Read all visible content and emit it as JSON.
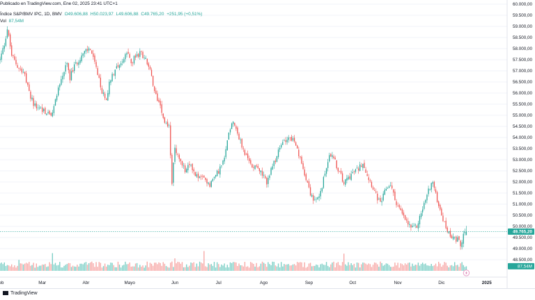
{
  "header": {
    "published": "Publicado en TradingView.com, Ene 02, 2025 23:41 UTC+1",
    "instrument": "Índice S&P/BMV IPC, 1D, BMV",
    "open": "O49.606,88",
    "high": "H50.023,97",
    "low": "L49.606,88",
    "close": "C49.765,20",
    "change": "+251,95 (+0,51%)",
    "vol_label": "Vol",
    "vol_value": "87,54M"
  },
  "badges": {
    "last_price": "49.765,20",
    "last_volume": "87,54M"
  },
  "footer": {
    "brand": "TradingView"
  },
  "colors": {
    "up": "#26a69a",
    "down": "#ef5350",
    "up_volume": "#7ccfc6",
    "down_volume": "#f7a9a7",
    "price_line": "#26a69a"
  },
  "chart_data": {
    "type": "candlestick",
    "title": "Índice S&P/BMV IPC, 1D, BMV",
    "ylim": [
      48000,
      60000
    ],
    "y_ticks": [
      48500,
      49000,
      49500,
      50000,
      50500,
      51000,
      51500,
      52000,
      52500,
      53000,
      53500,
      54000,
      54500,
      55000,
      55500,
      56000,
      56500,
      57000,
      57500,
      58000,
      58500,
      59000,
      59500,
      60000
    ],
    "y_tick_labels": [
      "48.500,00",
      "49.000,00",
      "49.500,00",
      "50.000,00",
      "50.500,00",
      "51.000,00",
      "51.500,00",
      "52.000,00",
      "52.500,00",
      "53.000,00",
      "53.500,00",
      "54.000,00",
      "54.500,00",
      "55.000,00",
      "55.500,00",
      "56.000,00",
      "56.500,00",
      "57.000,00",
      "57.500,00",
      "58.000,00",
      "58.500,00",
      "59.000,00",
      "59.500,00",
      "60.000,00"
    ],
    "x_axis_labels": [
      {
        "label": "Feb",
        "day": 0
      },
      {
        "label": "Mar",
        "day": 29
      },
      {
        "label": "Abr",
        "day": 59
      },
      {
        "label": "Mayo",
        "day": 89
      },
      {
        "label": "Jun",
        "day": 120
      },
      {
        "label": "Jul",
        "day": 150
      },
      {
        "label": "Ago",
        "day": 181
      },
      {
        "label": "Sep",
        "day": 212
      },
      {
        "label": "Oct",
        "day": 242
      },
      {
        "label": "Nov",
        "day": 273
      },
      {
        "label": "Dic",
        "day": 303
      },
      {
        "label": "2025",
        "day": 334
      }
    ],
    "x_range_days": [
      0,
      348
    ],
    "path": [
      [
        0,
        57500
      ],
      [
        3,
        58200
      ],
      [
        5,
        58900
      ],
      [
        8,
        57700
      ],
      [
        12,
        57200
      ],
      [
        16,
        57000
      ],
      [
        20,
        56000
      ],
      [
        24,
        55400
      ],
      [
        28,
        55300
      ],
      [
        32,
        55100
      ],
      [
        36,
        55000
      ],
      [
        39,
        56000
      ],
      [
        43,
        56800
      ],
      [
        46,
        57300
      ],
      [
        48,
        56700
      ],
      [
        51,
        57200
      ],
      [
        55,
        57600
      ],
      [
        59,
        57900
      ],
      [
        62,
        58000
      ],
      [
        66,
        57100
      ],
      [
        70,
        56000
      ],
      [
        73,
        55800
      ],
      [
        76,
        56700
      ],
      [
        80,
        57200
      ],
      [
        84,
        57400
      ],
      [
        87,
        57800
      ],
      [
        90,
        57400
      ],
      [
        94,
        57700
      ],
      [
        97,
        57800
      ],
      [
        100,
        57500
      ],
      [
        103,
        57000
      ],
      [
        106,
        56000
      ],
      [
        110,
        55500
      ],
      [
        113,
        54700
      ],
      [
        116,
        54500
      ],
      [
        118,
        52000
      ],
      [
        120,
        53500
      ],
      [
        123,
        53000
      ],
      [
        127,
        52500
      ],
      [
        131,
        52800
      ],
      [
        134,
        52300
      ],
      [
        137,
        52200
      ],
      [
        141,
        52100
      ],
      [
        144,
        51900
      ],
      [
        147,
        52200
      ],
      [
        150,
        52500
      ],
      [
        154,
        53000
      ],
      [
        157,
        54300
      ],
      [
        160,
        54800
      ],
      [
        163,
        54200
      ],
      [
        166,
        53600
      ],
      [
        170,
        53000
      ],
      [
        173,
        52700
      ],
      [
        176,
        52800
      ],
      [
        180,
        52300
      ],
      [
        183,
        52000
      ],
      [
        186,
        52500
      ],
      [
        189,
        53000
      ],
      [
        192,
        53500
      ],
      [
        195,
        53900
      ],
      [
        198,
        54000
      ],
      [
        201,
        53900
      ],
      [
        204,
        53400
      ],
      [
        207,
        52800
      ],
      [
        210,
        52200
      ],
      [
        213,
        51500
      ],
      [
        216,
        51100
      ],
      [
        219,
        51300
      ],
      [
        222,
        52100
      ],
      [
        225,
        53000
      ],
      [
        228,
        53300
      ],
      [
        230,
        52900
      ],
      [
        233,
        52400
      ],
      [
        236,
        52000
      ],
      [
        239,
        52200
      ],
      [
        242,
        52400
      ],
      [
        246,
        52600
      ],
      [
        249,
        52900
      ],
      [
        252,
        52300
      ],
      [
        255,
        51900
      ],
      [
        258,
        51400
      ],
      [
        261,
        51000
      ],
      [
        265,
        51700
      ],
      [
        268,
        51900
      ],
      [
        271,
        51200
      ],
      [
        274,
        50800
      ],
      [
        277,
        50400
      ],
      [
        280,
        50100
      ],
      [
        283,
        49900
      ],
      [
        286,
        50000
      ],
      [
        289,
        50600
      ],
      [
        292,
        51200
      ],
      [
        295,
        51800
      ],
      [
        297,
        52000
      ],
      [
        299,
        51400
      ],
      [
        302,
        50800
      ],
      [
        305,
        50100
      ],
      [
        308,
        49700
      ],
      [
        311,
        49500
      ],
      [
        314,
        49400
      ],
      [
        316,
        49200
      ],
      [
        318,
        49600
      ],
      [
        320,
        49765
      ]
    ],
    "volume_spikes": [
      {
        "day": 13,
        "volume_m": 210,
        "direction": "up"
      },
      {
        "day": 36,
        "volume_m": 340,
        "direction": "up"
      },
      {
        "day": 120,
        "volume_m": 240,
        "direction": "down"
      },
      {
        "day": 140,
        "volume_m": 380,
        "direction": "down"
      },
      {
        "day": 236,
        "volume_m": 330,
        "direction": "down"
      },
      {
        "day": 310,
        "volume_m": 110,
        "direction": "up"
      },
      {
        "day": 320,
        "volume_m": 87.54,
        "direction": "up"
      }
    ],
    "volume_max_m": 1200,
    "last": {
      "open": 49606.88,
      "high": 50023.97,
      "low": 49606.88,
      "close": 49765.2,
      "change": 251.95,
      "change_pct": 0.51,
      "volume_m": 87.54
    }
  }
}
